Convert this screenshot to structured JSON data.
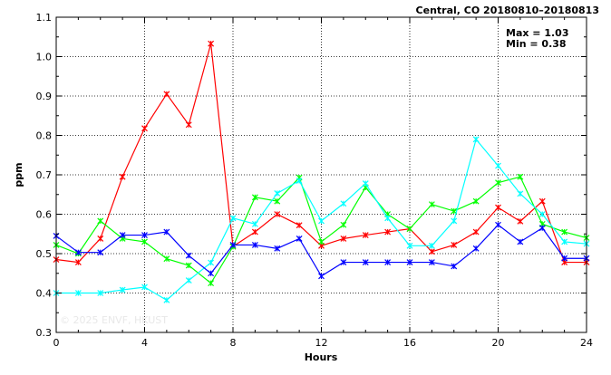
{
  "chart_data": {
    "type": "line",
    "title": "Central, CO 20180810–20180813",
    "xlabel": "Hours",
    "ylabel": "ppm",
    "xlim": [
      0,
      24
    ],
    "ylim": [
      0.3,
      1.1
    ],
    "x_ticks": [
      "0",
      "4",
      "8",
      "12",
      "16",
      "20",
      "24"
    ],
    "y_ticks": [
      "0.3",
      "0.4",
      "0.5",
      "0.6",
      "0.7",
      "0.8",
      "0.9",
      "1.0",
      "1.1"
    ],
    "grid": true,
    "annotations": {
      "max": "Max = 1.03",
      "min": "Min = 0.38"
    },
    "watermark": "© 2025  ENVF, HKUST",
    "x": [
      0,
      1,
      2,
      3,
      4,
      5,
      6,
      7,
      8,
      9,
      10,
      11,
      12,
      13,
      14,
      15,
      16,
      17,
      18,
      19,
      20,
      21,
      22,
      23,
      24
    ],
    "series": [
      {
        "color": "#ff0000",
        "values": [
          0.485,
          0.478,
          0.538,
          0.695,
          0.818,
          0.905,
          0.827,
          1.033,
          0.518,
          0.555,
          0.6,
          0.572,
          0.52,
          0.538,
          0.547,
          0.555,
          0.563,
          0.505,
          0.522,
          0.555,
          0.617,
          0.582,
          0.633,
          0.478,
          0.478
        ]
      },
      {
        "color": "#00ff00",
        "values": [
          0.522,
          0.5,
          0.583,
          0.538,
          0.53,
          0.487,
          0.47,
          0.425,
          0.518,
          0.643,
          0.633,
          0.693,
          0.53,
          0.573,
          0.668,
          0.6,
          0.563,
          0.625,
          0.608,
          0.633,
          0.68,
          0.695,
          0.575,
          0.555,
          0.54
        ]
      },
      {
        "color": "#00ffff",
        "values": [
          0.4,
          0.4,
          0.4,
          0.408,
          0.415,
          0.382,
          0.432,
          0.477,
          0.59,
          0.575,
          0.653,
          0.685,
          0.583,
          0.627,
          0.678,
          0.59,
          0.52,
          0.52,
          0.583,
          0.79,
          0.723,
          0.652,
          0.6,
          0.53,
          0.525
        ]
      },
      {
        "color": "#0000ff",
        "values": [
          0.545,
          0.503,
          0.503,
          0.547,
          0.547,
          0.555,
          0.495,
          0.45,
          0.522,
          0.522,
          0.513,
          0.538,
          0.443,
          0.478,
          0.478,
          0.478,
          0.478,
          0.478,
          0.468,
          0.513,
          0.573,
          0.53,
          0.565,
          0.488,
          0.488
        ]
      }
    ]
  }
}
